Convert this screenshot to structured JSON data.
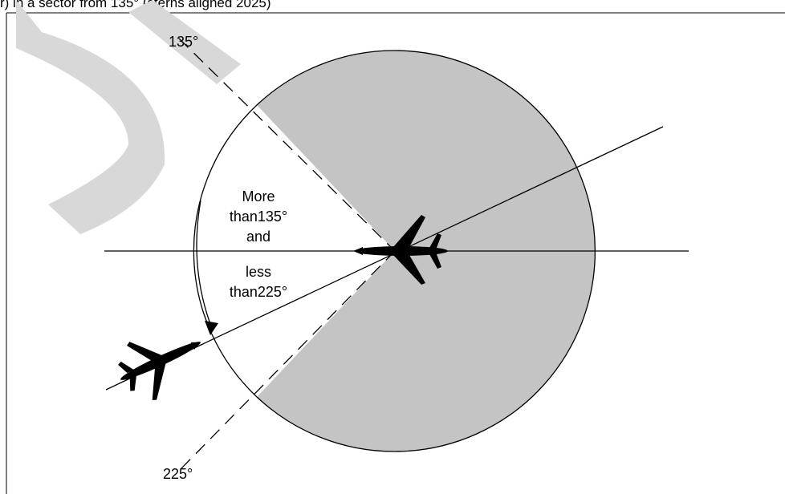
{
  "header_fragment": "r) in a sector from 135° (sterns aligned 2025)",
  "labels": {
    "angle_135": "135°",
    "angle_225": "225°",
    "sector_line1": "More",
    "sector_line2": "than135°",
    "sector_line3": "and",
    "sector_line4": "less",
    "sector_line5": "than225°"
  },
  "colors": {
    "sector_fill": "#c4c4c4",
    "watermark": "#d8d8d8",
    "line": "#000000"
  },
  "icons": [
    "airplane-icon"
  ]
}
